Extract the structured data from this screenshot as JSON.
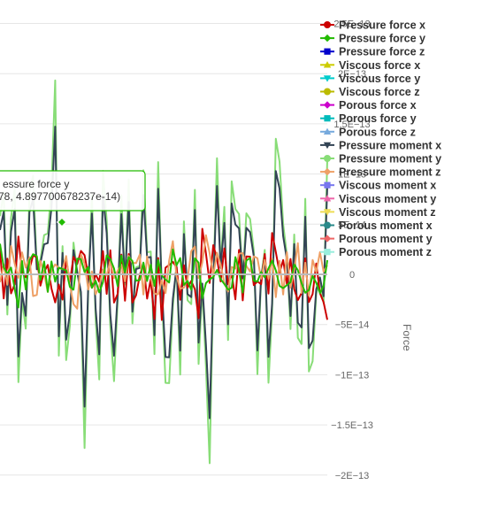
{
  "chart_data": {
    "type": "line",
    "y_axis": {
      "title": "Force",
      "position": "right",
      "ticks": [
        {
          "value": 2.5e-13,
          "label": "2.5E−13"
        },
        {
          "value": 2e-13,
          "label": "2E−13"
        },
        {
          "value": 1.5e-13,
          "label": "1.5E−13"
        },
        {
          "value": 1e-13,
          "label": "1E−13"
        },
        {
          "value": 5e-14,
          "label": "5E−14"
        },
        {
          "value": 0,
          "label": "0"
        },
        {
          "value": -5e-14,
          "label": "−5E−14"
        },
        {
          "value": -1e-13,
          "label": "−1E−13"
        },
        {
          "value": -1.5e-13,
          "label": "−1.5E−13"
        },
        {
          "value": -2e-13,
          "label": "−2E−13"
        }
      ],
      "range": [
        -2.35e-13,
        2.6e-13
      ]
    },
    "grid": true,
    "legend_position": "top-right",
    "series": [
      {
        "name": "Pressure force x",
        "color": "#cc0000",
        "marker": "circle",
        "amplitude": 5.5e-14,
        "seed": 11
      },
      {
        "name": "Pressure force y",
        "color": "#22bb00",
        "marker": "diamond",
        "amplitude": 3.5e-14,
        "seed": 23
      },
      {
        "name": "Pressure force z",
        "color": "#0000cc",
        "marker": "square",
        "amplitude": 0,
        "seed": 0
      },
      {
        "name": "Viscous force x",
        "color": "#cccc00",
        "marker": "triangle",
        "amplitude": 0,
        "seed": 0
      },
      {
        "name": "Viscous force y",
        "color": "#00cccc",
        "marker": "triangle-down",
        "amplitude": 0,
        "seed": 0
      },
      {
        "name": "Viscous force z",
        "color": "#bbbb00",
        "marker": "circle",
        "amplitude": 0,
        "seed": 0
      },
      {
        "name": "Porous force x",
        "color": "#cc00cc",
        "marker": "diamond",
        "amplitude": 0,
        "seed": 0
      },
      {
        "name": "Porous force y",
        "color": "#00bbbb",
        "marker": "square",
        "amplitude": 0,
        "seed": 0
      },
      {
        "name": "Porous force z",
        "color": "#77aadd",
        "marker": "triangle",
        "amplitude": 0,
        "seed": 0
      },
      {
        "name": "Pressure moment x",
        "color": "#334455",
        "marker": "triangle-down",
        "amplitude": 1.6e-13,
        "seed": 37
      },
      {
        "name": "Pressure moment y",
        "color": "#88dd77",
        "marker": "circle",
        "amplitude": 2.1e-13,
        "seed": 37
      },
      {
        "name": "Pressure moment z",
        "color": "#eea066",
        "marker": "diamond",
        "amplitude": 4.5e-14,
        "seed": 51
      },
      {
        "name": "Viscous moment x",
        "color": "#7777ee",
        "marker": "square",
        "amplitude": 0,
        "seed": 0
      },
      {
        "name": "Viscous moment y",
        "color": "#ee66aa",
        "marker": "triangle",
        "amplitude": 0,
        "seed": 0
      },
      {
        "name": "Viscous moment z",
        "color": "#eedd55",
        "marker": "triangle-down",
        "amplitude": 0,
        "seed": 0
      },
      {
        "name": "Porous moment x",
        "color": "#2a8a8a",
        "marker": "circle",
        "amplitude": 0,
        "seed": 0
      },
      {
        "name": "Porous moment y",
        "color": "#ee6666",
        "marker": "diamond",
        "amplitude": 0,
        "seed": 0
      },
      {
        "name": "Porous moment z",
        "color": "#99eedd",
        "marker": "square",
        "amplitude": 0,
        "seed": 0
      }
    ]
  },
  "tooltip": {
    "title": "essure force y",
    "body": "78, 4.897700678237e-14)",
    "border_color": "#22bb00"
  }
}
